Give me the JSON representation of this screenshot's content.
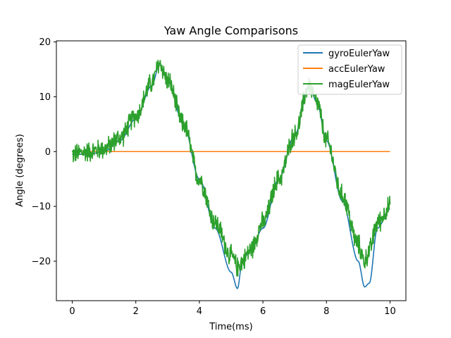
{
  "chart_data": {
    "type": "line",
    "title": "Yaw Angle Comparisons",
    "xlabel": "Time(ms)",
    "ylabel": "Angle (degrees)",
    "xlim": [
      -0.5,
      10.5
    ],
    "ylim": [
      -27.2,
      20.2
    ],
    "xticks": [
      0,
      2,
      4,
      6,
      8,
      10
    ],
    "yticks": [
      -20,
      -10,
      0,
      10,
      20
    ],
    "xtick_labels": [
      "0",
      "2",
      "4",
      "6",
      "8",
      "10"
    ],
    "ytick_labels": [
      "−20",
      "−10",
      "0",
      "10",
      "20"
    ],
    "grid": false,
    "legend_position": "top-right",
    "series": [
      {
        "name": "gyroEulerYaw",
        "color": "#1f77b4",
        "noise": 0,
        "x": [
          0,
          0.5,
          1.0,
          1.5,
          2.0,
          2.5,
          2.75,
          3.0,
          3.5,
          4.0,
          4.5,
          5.0,
          5.2,
          5.35,
          5.6,
          6.0,
          6.5,
          7.0,
          7.45,
          7.7,
          8.0,
          8.5,
          9.0,
          9.2,
          9.35,
          9.6,
          10.0
        ],
        "y": [
          -0.5,
          -0.5,
          0,
          2,
          6,
          12,
          16,
          13,
          5,
          -5,
          -14,
          -22,
          -25,
          -20,
          -18,
          -14,
          -5,
          3,
          12,
          9,
          2,
          -9,
          -20,
          -24.7,
          -24,
          -14,
          -10.5
        ]
      },
      {
        "name": "accEulerYaw",
        "color": "#ff7f0e",
        "noise": 0,
        "x": [
          0,
          10
        ],
        "y": [
          0,
          0
        ]
      },
      {
        "name": "magEulerYaw",
        "color": "#2ca02c",
        "noise": 1.6,
        "x": [
          0,
          0.5,
          1.0,
          1.5,
          2.0,
          2.5,
          2.75,
          3.0,
          3.5,
          4.0,
          4.5,
          5.0,
          5.2,
          5.35,
          5.6,
          6.0,
          6.5,
          7.0,
          7.45,
          7.7,
          8.0,
          8.5,
          9.0,
          9.2,
          9.35,
          9.6,
          10.0
        ],
        "y": [
          -0.5,
          0,
          0.5,
          2.5,
          6.5,
          12.5,
          16,
          13,
          5,
          -5,
          -13,
          -19,
          -21,
          -20,
          -18,
          -13,
          -5,
          3,
          12,
          9,
          2,
          -8,
          -17,
          -20,
          -18,
          -13,
          -10
        ]
      }
    ]
  }
}
